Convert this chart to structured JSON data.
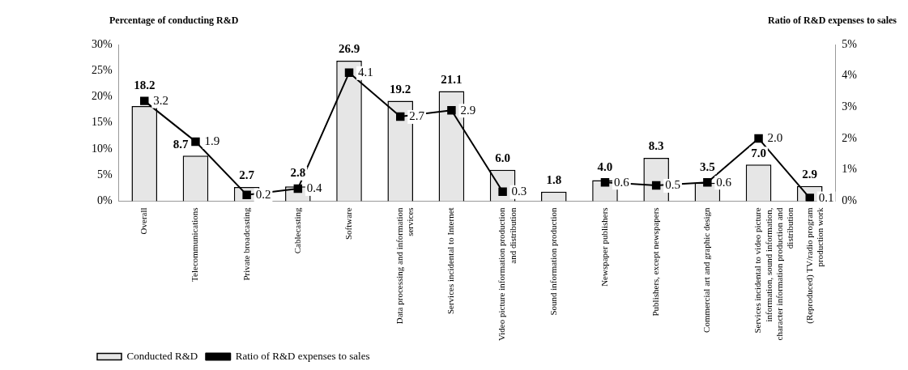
{
  "chart_data": {
    "type": "bar",
    "ylabel": "Percentage of conducting R&D",
    "y2label": "Ratio of R&D expenses to sales",
    "categories": [
      "Overall",
      "Telecommunications",
      "Private broadcasting",
      "Cablecasting",
      "Software",
      [
        "Data processing and information",
        "services"
      ],
      "Services incidental to Internet",
      [
        "Video picture information production",
        "and distribution"
      ],
      "Sound information production",
      "Newspaper publishers",
      "Publishers, except newspapers",
      "Commercial art and graphic design",
      [
        "Services incidental to video picture",
        "information, sound information,",
        "character information production and",
        "distribution"
      ],
      [
        "(Reproduced) TV/radio program",
        "production work"
      ]
    ],
    "series": [
      {
        "name": "Conducted R&D",
        "color": "#e6e6e6",
        "values": [
          18.2,
          8.7,
          2.7,
          2.8,
          26.9,
          19.2,
          21.1,
          6.0,
          1.8,
          4.0,
          8.3,
          3.5,
          7.0,
          2.9
        ],
        "value_labels": [
          "18.2",
          "8.7",
          "2.7",
          "2.8",
          "26.9",
          "19.2",
          "21.1",
          "6.0",
          "1.8",
          "4.0",
          "8.3",
          "3.5",
          "7.0",
          "2.9"
        ]
      },
      {
        "name": "Ratio of R&D expenses to sales",
        "type": "line",
        "axis": "y2",
        "color": "#000000",
        "values": [
          3.2,
          1.9,
          0.2,
          0.4,
          4.1,
          2.7,
          2.9,
          0.3,
          null,
          0.6,
          0.5,
          0.6,
          2.0,
          0.1
        ],
        "value_labels": [
          "3.2",
          "1.9",
          "0.2",
          "0.4",
          "4.1",
          "2.7",
          "2.9",
          "0.3",
          null,
          "0.6",
          "0.5",
          "0.6",
          "2.0",
          "0.1"
        ]
      }
    ],
    "ylim": [
      0,
      30
    ],
    "yticks": [
      {
        "value": 0,
        "label": "0%"
      },
      {
        "value": 5,
        "label": "5%"
      },
      {
        "value": 10,
        "label": "10%"
      },
      {
        "value": 15,
        "label": "15%"
      },
      {
        "value": 20,
        "label": "20%"
      },
      {
        "value": 25,
        "label": "25%"
      },
      {
        "value": 30,
        "label": "30%"
      }
    ],
    "y2lim": [
      0,
      5
    ],
    "y2ticks": [
      {
        "value": 0,
        "label": "0%"
      },
      {
        "value": 1,
        "label": "1%"
      },
      {
        "value": 2,
        "label": "2%"
      },
      {
        "value": 3,
        "label": "3%"
      },
      {
        "value": 4,
        "label": "4%"
      },
      {
        "value": 5,
        "label": "5%"
      }
    ],
    "grid": false,
    "legend": "bottom left",
    "marker": "square",
    "line_style": "solid"
  }
}
